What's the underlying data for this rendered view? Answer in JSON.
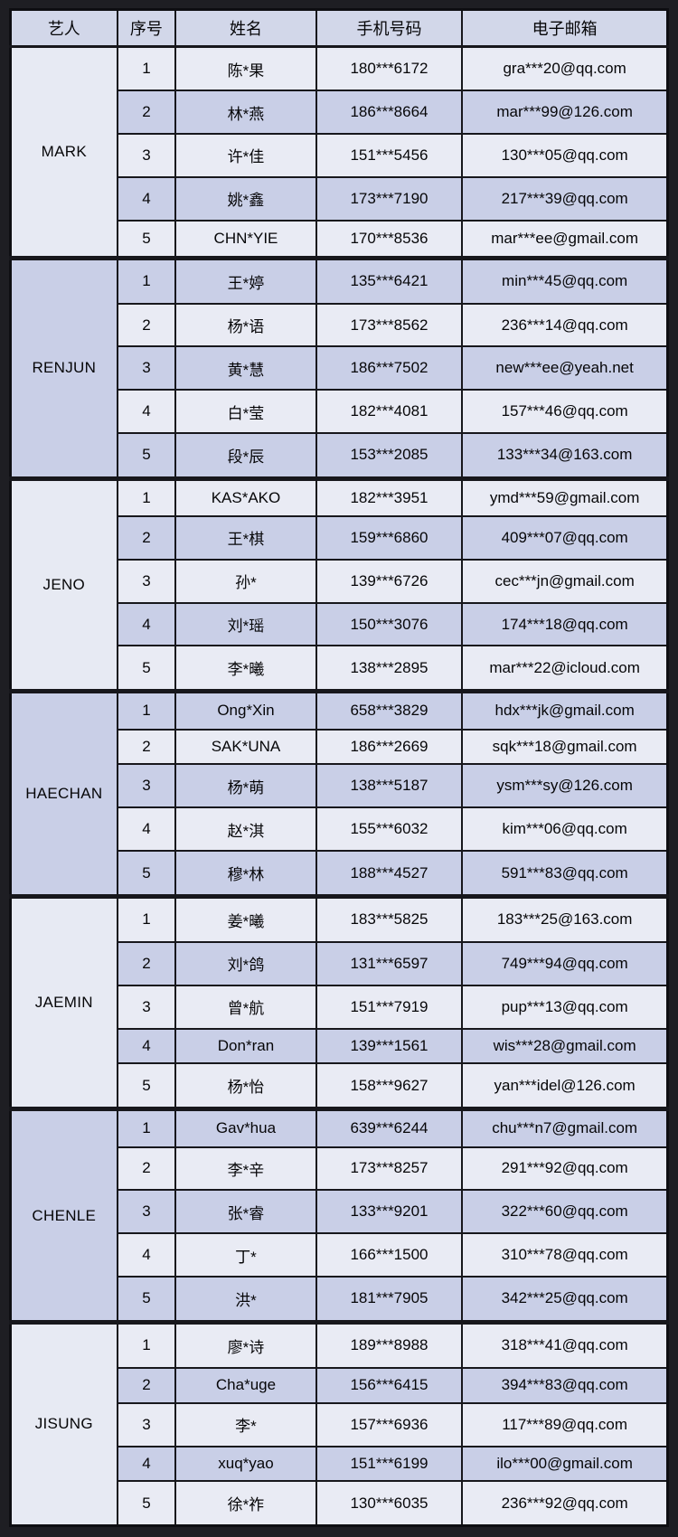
{
  "header": {
    "artist": "艺人",
    "index": "序号",
    "name": "姓名",
    "phone": "手机号码",
    "email": "电子邮箱"
  },
  "groups": [
    {
      "artist": "MARK",
      "rows": [
        {
          "index": "1",
          "name": "陈*果",
          "phone": "180***6172",
          "email": "gra***20@qq.com"
        },
        {
          "index": "2",
          "name": "林*燕",
          "phone": "186***8664",
          "email": "mar***99@126.com"
        },
        {
          "index": "3",
          "name": "许*佳",
          "phone": "151***5456",
          "email": "130***05@qq.com"
        },
        {
          "index": "4",
          "name": "姚*鑫",
          "phone": "173***7190",
          "email": "217***39@qq.com"
        },
        {
          "index": "5",
          "name": "CHN*YIE",
          "phone": "170***8536",
          "email": "mar***ee@gmail.com"
        }
      ]
    },
    {
      "artist": "RENJUN",
      "rows": [
        {
          "index": "1",
          "name": "王*婷",
          "phone": "135***6421",
          "email": "min***45@qq.com"
        },
        {
          "index": "2",
          "name": "杨*语",
          "phone": "173***8562",
          "email": "236***14@qq.com"
        },
        {
          "index": "3",
          "name": "黄*慧",
          "phone": "186***7502",
          "email": "new***ee@yeah.net"
        },
        {
          "index": "4",
          "name": "白*莹",
          "phone": "182***4081",
          "email": "157***46@qq.com"
        },
        {
          "index": "5",
          "name": "段*辰",
          "phone": "153***2085",
          "email": "133***34@163.com"
        }
      ]
    },
    {
      "artist": "JENO",
      "rows": [
        {
          "index": "1",
          "name": "KAS*AKO",
          "phone": "182***3951",
          "email": "ymd***59@gmail.com"
        },
        {
          "index": "2",
          "name": "王*棋",
          "phone": "159***6860",
          "email": "409***07@qq.com"
        },
        {
          "index": "3",
          "name": "孙*",
          "phone": "139***6726",
          "email": "cec***jn@gmail.com"
        },
        {
          "index": "4",
          "name": "刘*瑶",
          "phone": "150***3076",
          "email": "174***18@qq.com"
        },
        {
          "index": "5",
          "name": "李*曦",
          "phone": "138***2895",
          "email": "mar***22@icloud.com"
        }
      ]
    },
    {
      "artist": "HAECHAN",
      "rows": [
        {
          "index": "1",
          "name": "Ong*Xin",
          "phone": "658***3829",
          "email": "hdx***jk@gmail.com"
        },
        {
          "index": "2",
          "name": "SAK*UNA",
          "phone": "186***2669",
          "email": "sqk***18@gmail.com"
        },
        {
          "index": "3",
          "name": "杨*萌",
          "phone": "138***5187",
          "email": "ysm***sy@126.com"
        },
        {
          "index": "4",
          "name": "赵*淇",
          "phone": "155***6032",
          "email": "kim***06@qq.com"
        },
        {
          "index": "5",
          "name": "穆*林",
          "phone": "188***4527",
          "email": "591***83@qq.com"
        }
      ]
    },
    {
      "artist": "JAEMIN",
      "rows": [
        {
          "index": "1",
          "name": "姜*曦",
          "phone": "183***5825",
          "email": "183***25@163.com"
        },
        {
          "index": "2",
          "name": "刘*鸽",
          "phone": "131***6597",
          "email": "749***94@qq.com"
        },
        {
          "index": "3",
          "name": "曾*航",
          "phone": "151***7919",
          "email": "pup***13@qq.com"
        },
        {
          "index": "4",
          "name": "Don*ran",
          "phone": "139***1561",
          "email": "wis***28@gmail.com"
        },
        {
          "index": "5",
          "name": "杨*怡",
          "phone": "158***9627",
          "email": "yan***idel@126.com"
        }
      ]
    },
    {
      "artist": "CHENLE",
      "rows": [
        {
          "index": "1",
          "name": "Gav*hua",
          "phone": "639***6244",
          "email": "chu***n7@gmail.com"
        },
        {
          "index": "2",
          "name": "李*辛",
          "phone": "173***8257",
          "email": "291***92@qq.com"
        },
        {
          "index": "3",
          "name": "张*睿",
          "phone": "133***9201",
          "email": "322***60@qq.com"
        },
        {
          "index": "4",
          "name": "丁*",
          "phone": "166***1500",
          "email": "310***78@qq.com"
        },
        {
          "index": "5",
          "name": "洪*",
          "phone": "181***7905",
          "email": "342***25@qq.com"
        }
      ]
    },
    {
      "artist": "JISUNG",
      "rows": [
        {
          "index": "1",
          "name": "廖*诗",
          "phone": "189***8988",
          "email": "318***41@qq.com"
        },
        {
          "index": "2",
          "name": "Cha*uge",
          "phone": "156***6415",
          "email": "394***83@qq.com"
        },
        {
          "index": "3",
          "name": "李*",
          "phone": "157***6936",
          "email": "117***89@qq.com"
        },
        {
          "index": "4",
          "name": "xuq*yao",
          "phone": "151***6199",
          "email": "ilo***00@gmail.com"
        },
        {
          "index": "5",
          "name": "徐*祚",
          "phone": "130***6035",
          "email": "236***92@qq.com"
        }
      ]
    }
  ],
  "colors": {
    "page_background": "#1e1e23",
    "grid_line": "#17171c",
    "header_background": "#d2d7e9",
    "row_light": "#e9ebf4",
    "row_dark": "#c9cfe7",
    "text": "#060608"
  }
}
